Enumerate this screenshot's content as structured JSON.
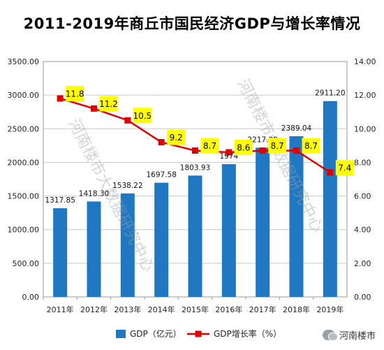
{
  "title": "2011-2019年商丘市国民经济GDP与增长率情况",
  "watermark": "河南楼市大数据研究中心",
  "brand": "河南楼市",
  "colors": {
    "bar": "#1f78c1",
    "line": "#e00000",
    "label_bg": "#ffff00",
    "grid": "#c8c8c8"
  },
  "chart_data": {
    "type": "bar",
    "categories": [
      "2011年",
      "2012年",
      "2013年",
      "2014年",
      "2015年",
      "2016年",
      "2017年",
      "2018年",
      "2019年"
    ],
    "series": [
      {
        "name": "GDP（亿元）",
        "type": "bar",
        "axis": "left",
        "values": [
          1317.85,
          1418.3,
          1538.22,
          1697.58,
          1803.93,
          1974,
          2217.89,
          2389.04,
          2911.2
        ],
        "labels": [
          "1317.85",
          "1418.30",
          "1538.22",
          "1697.58",
          "1803.93",
          "1974",
          "2217.89",
          "2389.04",
          "2911.20"
        ]
      },
      {
        "name": "GDP增长率（%）",
        "type": "line",
        "axis": "right",
        "values": [
          11.8,
          11.2,
          10.5,
          9.2,
          8.7,
          8.6,
          8.7,
          8.7,
          7.4
        ],
        "labels": [
          "11.8",
          "11.2",
          "10.5",
          "9.2",
          "8.7",
          "8.6",
          "8.7",
          "8.7",
          "7.4"
        ]
      }
    ],
    "y_left": {
      "min": 0,
      "max": 3500,
      "step": 500,
      "ticks": [
        "0.00",
        "500.00",
        "1000.00",
        "1500.00",
        "2000.00",
        "2500.00",
        "3000.00",
        "3500.00"
      ]
    },
    "y_right": {
      "min": 0,
      "max": 14,
      "step": 2,
      "ticks": [
        "0.00",
        "2.00",
        "4.00",
        "6.00",
        "8.00",
        "10.00",
        "12.00",
        "14.00"
      ]
    },
    "grid": true,
    "legend": "bottom"
  }
}
